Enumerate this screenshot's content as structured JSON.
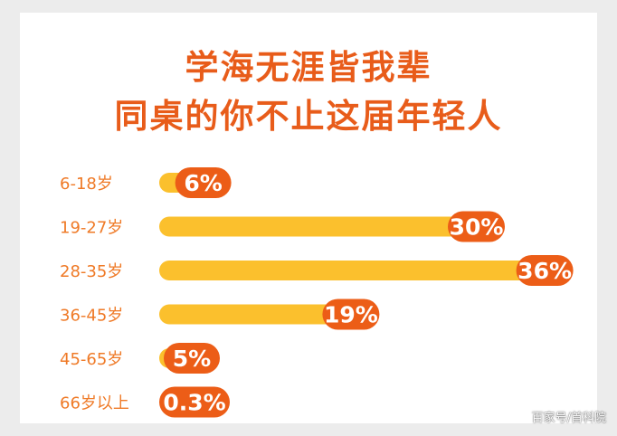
{
  "title_line1": "学海无涯皆我辈",
  "title_line2": "同桌的你不止这届年轻人",
  "watermark": "百家号/首科院",
  "colors": {
    "bar": "#fbc02d",
    "pill": "#ec5d17",
    "label": "#ef7a27",
    "title": "#e85c1a",
    "pill_text": "#ffffff"
  },
  "chart_data": {
    "type": "bar",
    "orientation": "horizontal",
    "categories": [
      "6-18岁",
      "19-27岁",
      "28-35岁",
      "36-45岁",
      "45-65岁",
      "66岁以上"
    ],
    "values": [
      6,
      30,
      36,
      19,
      5,
      0.3
    ],
    "value_labels": [
      "6%",
      "30%",
      "36%",
      "19%",
      "5%",
      "0.3%"
    ],
    "unit": "%"
  }
}
